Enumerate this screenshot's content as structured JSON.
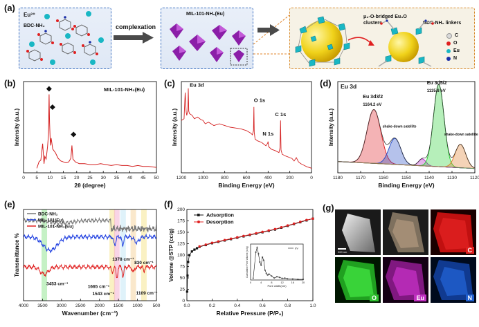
{
  "panel_a": {
    "label": "(a)",
    "box1": {
      "eu": "Eu³⁺",
      "ligand": "BDC-NH₂"
    },
    "arrow_label": "complexation",
    "box2": {
      "title": "MIL-101-NH₂(Eu)"
    },
    "box3": {
      "cluster": "μ₃-O-bridged Eu₃O clusters",
      "linker": "BDC-NH₂ linkers",
      "legend": [
        {
          "label": "C",
          "color": "#d9d9d9"
        },
        {
          "label": "O",
          "color": "#e02020"
        },
        {
          "label": "Eu",
          "color": "#19b7c4"
        },
        {
          "label": "N",
          "color": "#1b2fa8"
        }
      ]
    }
  },
  "chart_data": [
    {
      "type": "line",
      "panel": "(b)",
      "title": "MIL-101-NH₂(Eu)",
      "xlabel": "2θ (degree)",
      "ylabel": "Intensity (a.u.)",
      "xlim": [
        0,
        50
      ],
      "xticks": [
        "0",
        "5",
        "10",
        "15",
        "20",
        "25",
        "30",
        "35",
        "40",
        "45",
        "50"
      ],
      "x": [
        5,
        5.8,
        6.5,
        7.2,
        7.7,
        8.0,
        8.5,
        9.0,
        9.4,
        9.6,
        9.8,
        10.1,
        10.4,
        11,
        12,
        13,
        14,
        15,
        16,
        17,
        17.8,
        18.2,
        18.6,
        19.5,
        21,
        23,
        25,
        27,
        29,
        31,
        33,
        35,
        37,
        39,
        41,
        43,
        45,
        47,
        50
      ],
      "values": [
        0.05,
        0.12,
        0.14,
        0.32,
        0.1,
        0.18,
        0.15,
        0.28,
        0.42,
        0.86,
        0.55,
        0.3,
        0.38,
        0.26,
        0.22,
        0.16,
        0.13,
        0.12,
        0.11,
        0.12,
        0.16,
        0.3,
        0.15,
        0.12,
        0.1,
        0.1,
        0.09,
        0.09,
        0.1,
        0.09,
        0.08,
        0.09,
        0.08,
        0.08,
        0.07,
        0.08,
        0.07,
        0.07,
        0.06
      ],
      "markers_x": [
        9.6,
        10.9,
        18.8
      ]
    },
    {
      "type": "line",
      "panel": "(c)",
      "xlabel": "Binding Energy (eV)",
      "ylabel": "Intensity (a.u.)",
      "xlim": [
        1200,
        0
      ],
      "xticks": [
        "1200",
        "1000",
        "800",
        "600",
        "400",
        "200",
        "0"
      ],
      "annotations": [
        {
          "x": 1135,
          "text": "Eu 3d"
        },
        {
          "x": 531,
          "text": "O 1s"
        },
        {
          "x": 400,
          "text": "N 1s"
        },
        {
          "x": 285,
          "text": "C 1s"
        }
      ],
      "x": [
        1200,
        1175,
        1165,
        1155,
        1150,
        1140,
        1136,
        1132,
        1125,
        1100,
        1080,
        1050,
        1020,
        1000,
        980,
        950,
        900,
        850,
        800,
        750,
        700,
        650,
        600,
        560,
        545,
        535,
        531,
        528,
        520,
        500,
        460,
        420,
        405,
        400,
        395,
        370,
        330,
        300,
        290,
        285,
        281,
        270,
        240,
        200,
        180,
        160,
        140,
        120,
        100,
        70,
        40,
        10,
        0
      ],
      "values": [
        0.62,
        0.64,
        0.95,
        0.72,
        0.68,
        0.74,
        1.0,
        0.73,
        0.7,
        0.68,
        0.64,
        0.66,
        0.63,
        0.62,
        0.58,
        0.6,
        0.56,
        0.58,
        0.56,
        0.54,
        0.53,
        0.52,
        0.5,
        0.47,
        0.45,
        0.5,
        0.78,
        0.48,
        0.4,
        0.38,
        0.36,
        0.32,
        0.35,
        0.37,
        0.31,
        0.28,
        0.26,
        0.24,
        0.3,
        0.62,
        0.27,
        0.22,
        0.2,
        0.18,
        0.17,
        0.14,
        0.18,
        0.13,
        0.11,
        0.09,
        0.07,
        0.06,
        0.05
      ]
    },
    {
      "type": "line",
      "panel": "(d)",
      "title": "Eu 3d",
      "xlabel": "Binding Energy (eV)",
      "ylabel": "Intensity (a.u.)",
      "xlim": [
        1180,
        1120
      ],
      "xticks": [
        "1180",
        "1170",
        "1160",
        "1150",
        "1140",
        "1130",
        "1120"
      ],
      "annotations": [
        {
          "x": 1164.2,
          "text": "Eu 3d3/2",
          "sub": "1164.2 eV"
        },
        {
          "x": 1135.8,
          "text": "Eu 3d5/2",
          "sub": "1135.8 eV"
        },
        {
          "x": 1155,
          "text": "shake-down satellite"
        },
        {
          "x": 1126,
          "text": "shake-down satellite"
        }
      ],
      "peaks": [
        {
          "name": "Eu 3d3/2",
          "center": 1164.2,
          "height": 0.62,
          "width": 3.0,
          "color": "#e0262b"
        },
        {
          "name": "shake-down satellite",
          "center": 1155.0,
          "height": 0.3,
          "width": 2.6,
          "color": "#2b4fc7"
        },
        {
          "name": "peak",
          "center": 1143.0,
          "height": 0.08,
          "width": 1.6,
          "color": "#b32bc4"
        },
        {
          "name": "Eu 3d5/2",
          "center": 1135.8,
          "height": 0.95,
          "width": 2.3,
          "color": "#2fd13a"
        },
        {
          "name": "shake-down satellite",
          "center": 1126.3,
          "height": 0.27,
          "width": 2.3,
          "color": "#e08030"
        }
      ]
    },
    {
      "type": "line",
      "panel": "(e)",
      "xlabel": "Wavenumber (cm⁻¹)",
      "ylabel": "Transmittance %",
      "xlim": [
        4000,
        500
      ],
      "xticks": [
        "4000",
        "3500",
        "3000",
        "2500",
        "2000",
        "1500",
        "1000",
        "500"
      ],
      "series": [
        {
          "name": "BDC-NH₂",
          "color": "#777777"
        },
        {
          "name": "MIL-101(Eu)",
          "color": "#2040e0"
        },
        {
          "name": "MIL-101-NH₂(Eu)",
          "color": "#e02020"
        }
      ],
      "annotations": [
        {
          "x": 3453,
          "text": "3453 cm⁻¹"
        },
        {
          "x": 1378,
          "text": "1378 cm⁻¹"
        },
        {
          "x": 830,
          "text": "830 cm⁻¹"
        },
        {
          "x": 1665,
          "text": "1665 cm⁻¹"
        },
        {
          "x": 1543,
          "text": "1543 cm⁻¹"
        },
        {
          "x": 1109,
          "text": "1109 cm⁻¹"
        }
      ]
    },
    {
      "type": "line",
      "panel": "(f)",
      "xlabel": "Relative Pressure (P/P₀)",
      "ylabel": "Volume @STP (cc/g)",
      "xlim": [
        0,
        1.0
      ],
      "ylim": [
        0,
        200
      ],
      "xticks": [
        "0.0",
        "0.2",
        "0.4",
        "0.6",
        "0.8",
        "1.0"
      ],
      "yticks": [
        "0",
        "25",
        "50",
        "75",
        "100",
        "125",
        "150",
        "175",
        "200"
      ],
      "series": [
        {
          "name": "Adsorption",
          "color": "#111111",
          "x": [
            0.002,
            0.005,
            0.01,
            0.02,
            0.04,
            0.06,
            0.08,
            0.1,
            0.15,
            0.2,
            0.25,
            0.3,
            0.35,
            0.4,
            0.45,
            0.5,
            0.55,
            0.6,
            0.65,
            0.7,
            0.75,
            0.8,
            0.85,
            0.9,
            0.95,
            1.0
          ],
          "y": [
            20,
            55,
            85,
            100,
            108,
            112,
            115,
            118,
            122,
            126,
            129,
            132,
            135,
            138,
            141,
            144,
            147,
            150,
            153,
            156,
            160,
            164,
            168,
            172,
            176,
            180
          ]
        },
        {
          "name": "Desorption",
          "color": "#e02020",
          "x": [
            1.0,
            0.95,
            0.9,
            0.85,
            0.8,
            0.75,
            0.7,
            0.65,
            0.6,
            0.55,
            0.5,
            0.45,
            0.4,
            0.35,
            0.3,
            0.25,
            0.2,
            0.15,
            0.1
          ],
          "y": [
            180,
            177,
            173,
            169,
            165,
            161,
            157,
            154,
            151,
            148,
            145,
            142,
            139,
            136,
            133,
            130,
            127,
            123,
            119
          ]
        }
      ],
      "inset": {
        "legend": "dV",
        "xlabel": "Pore width(nm)",
        "ylabel": "Cumulative Pore Volume (cc/g)",
        "xticks": [
          "0",
          "4",
          "8",
          "12",
          "16",
          "20"
        ],
        "x": [
          1,
          2,
          2.5,
          3,
          3.5,
          4,
          4.5,
          5,
          5.5,
          6,
          6.5,
          7,
          8,
          9,
          10,
          11,
          12,
          13,
          14,
          16,
          18,
          20
        ],
        "y": [
          0.05,
          0.85,
          1.0,
          0.8,
          0.55,
          0.45,
          0.7,
          0.6,
          0.3,
          0.2,
          0.15,
          0.18,
          0.12,
          0.06,
          0.1,
          0.08,
          0.05,
          0.06,
          0.04,
          0.03,
          0.02,
          0.02
        ]
      }
    }
  ],
  "panel_labels": {
    "b": "(b)",
    "c": "(c)",
    "d": "(d)",
    "e": "(e)",
    "f": "(f)",
    "g": "(g)"
  },
  "panel_g": {
    "scale": "200 nm",
    "maps": [
      {
        "label": "C",
        "color": "#e02020"
      },
      {
        "label": "O",
        "color": "#30d030"
      },
      {
        "label": "Eu",
        "color": "#c030c0"
      },
      {
        "label": "N",
        "color": "#2060d0"
      }
    ]
  }
}
